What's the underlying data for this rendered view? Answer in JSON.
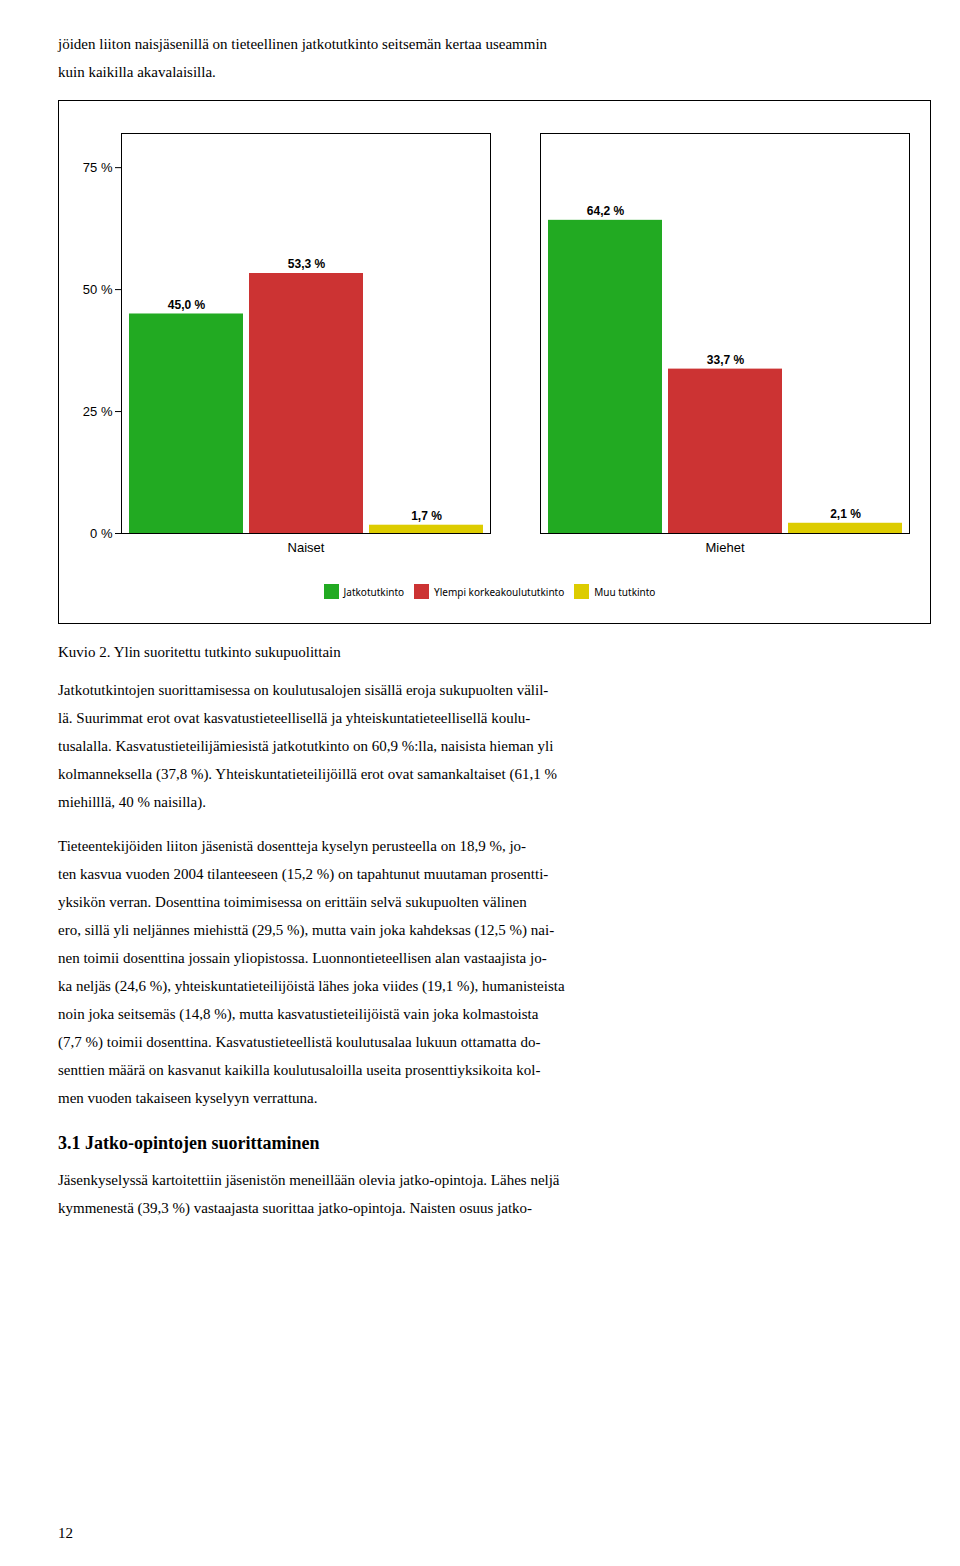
{
  "chart_data": {
    "type": "bar",
    "categories": [
      "Naiset",
      "Miehet"
    ],
    "series": [
      {
        "name": "Jatkotutkinto",
        "color": "#22aa22",
        "values": [
          45.0,
          64.2
        ],
        "value_labels": [
          "45,0 %",
          "64,2 %"
        ]
      },
      {
        "name": "Ylempi korkeakoulututkinto",
        "color": "#cc3333",
        "values": [
          53.3,
          33.7
        ],
        "value_labels": [
          "53,3 %",
          "33,7 %"
        ]
      },
      {
        "name": "Muu tutkinto",
        "color": "#ddcc00",
        "values": [
          1.7,
          2.1
        ],
        "value_labels": [
          "1,7 %",
          "2,1 %"
        ]
      }
    ],
    "ylim": [
      0,
      82
    ],
    "yticks": [
      {
        "value": 0,
        "label": "0 %"
      },
      {
        "value": 25,
        "label": "25 %"
      },
      {
        "value": 50,
        "label": "50 %"
      },
      {
        "value": 75,
        "label": "75 %"
      }
    ],
    "grid": false,
    "legend": "bottom",
    "data_labels": true
  },
  "text_before": [
    "jöiden liiton naisjäsenillä on tieteellinen jatkotutkinto seitsemän kertaa useammin",
    "kuin kaikilla akavalaisilla."
  ],
  "caption": "Kuvio 2.  Ylin suoritettu tutkinto sukupuolittain",
  "body_text": [
    "Jatkotutkintojen suorittamisessa on koulutusalojen sisällä eroja sukupuolten välil-",
    "lä. Suurimmat erot ovat kasvatustieteellisellä ja yhteiskuntatieteellisellä koulu-",
    "tusalalla. Kasvatustieteilijämiesistä jatkotutkinto on 60,9 %:lla, naisista hieman yli",
    "kolmanneksella (37,8 %). Yhteiskuntatieteilijöillä erot ovat samankaltaiset (61,1 %",
    "miehilllä, 40 % naisilla).",
    "",
    "Tieteentekijöiden liiton jäsenistä dosentteja kyselyn perusteella on 18,9 %, jo-",
    "ten kasvua vuoden 2004 tilanteeseen (15,2 %) on tapahtunut muutaman prosentti-",
    "yksikön verran. Dosenttina toimimisessa on erittäin selvä sukupuolten välinen",
    "ero, sillä yli neljännes miehisttä (29,5 %), mutta vain joka kahdeksas (12,5 %) nai-",
    "nen toimii dosenttina jossain yliopistossa. Luonnontieteellisen alan vastaajista jo-",
    "ka neljäs (24,6 %), yhteiskuntatieteilijöistä lähes joka viides (19,1 %), humanisteista",
    "noin joka seitsemäs (14,8 %), mutta kasvatustieteilijöistä vain joka kolmastoista",
    "(7,7 %) toimii dosenttina. Kasvatustieteellistä koulutusalaa lukuun ottamatta do-",
    "senttien määrä on kasvanut kaikilla koulutusaloilla useita prosenttiyksikoita kol-",
    "men vuoden takaiseen kyselyyn verrattuna."
  ],
  "section_header": "3.1  Jatko-opintojen suorittaminen",
  "footer_text": [
    "Jäsenkyselyssä kartoitettiin jäsenistön meneillään olevia jatko-opintoja. Lähes neljä",
    "kymmenestä (39,3 %) vastaajasta suorittaa jatko-opintoja. Naisten osuus jatko-"
  ],
  "page_number": "12"
}
